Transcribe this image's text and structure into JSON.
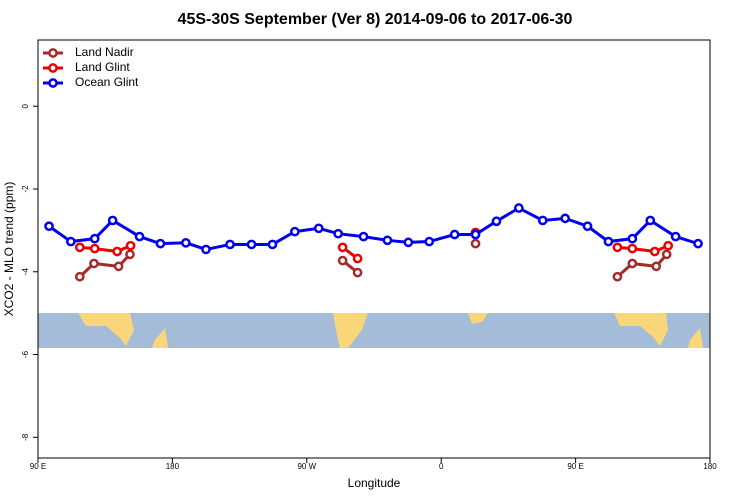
{
  "chart_data": {
    "type": "line",
    "title": "45S-30S September (Ver 8)   2014-09-06 to 2017-06-30",
    "x_label": "Longitude",
    "y_label": "XCO2 - MLO trend (ppm)",
    "xlim": [
      90,
      540
    ],
    "ylim": [
      -8.5,
      1.6
    ],
    "xticks": [
      {
        "value": 90,
        "label": "90 E"
      },
      180,
      {
        "value": 270,
        "label": "90 W"
      },
      {
        "value": 360,
        "label": "0"
      },
      {
        "value": 450,
        "label": "90 E"
      },
      {
        "value": 540,
        "label": "180"
      }
    ],
    "yticks": [
      0,
      -2,
      -4,
      -6,
      -8
    ],
    "legend": "top-left",
    "series": [
      {
        "name": "Land Nadir",
        "color": "#a52a2a",
        "x": [
          118,
          127.5,
          144,
          151.6,
          null,
          294,
          304,
          null,
          383,
          null,
          478,
          488,
          504,
          511
        ],
        "values": [
          -4.12,
          -3.8,
          -3.87,
          -3.58,
          null,
          -3.73,
          -4.02,
          null,
          -3.32,
          null,
          -4.12,
          -3.8,
          -3.87,
          -3.58
        ]
      },
      {
        "name": "Land Glint",
        "color": "#ee0000",
        "x": [
          118,
          128,
          143,
          152,
          null,
          294,
          304,
          null,
          383,
          null,
          478,
          488,
          503,
          512
        ],
        "values": [
          -3.41,
          -3.44,
          -3.51,
          -3.37,
          null,
          -3.41,
          -3.68,
          null,
          -3.05,
          null,
          -3.41,
          -3.44,
          -3.51,
          -3.37
        ]
      },
      {
        "name": "Ocean Glint",
        "color": "#0000ee",
        "x": [
          97.4,
          112,
          128,
          140,
          158,
          172,
          189,
          202.5,
          218.6,
          233,
          247,
          262,
          278,
          291,
          308,
          324,
          338,
          352,
          369,
          383,
          397,
          412,
          428,
          443,
          458,
          472,
          488,
          500,
          517,
          532
        ],
        "values": [
          -2.9,
          -3.27,
          -3.2,
          -2.76,
          -3.15,
          -3.32,
          -3.3,
          -3.46,
          -3.34,
          -3.34,
          -3.34,
          -3.03,
          -2.95,
          -3.08,
          -3.15,
          -3.24,
          -3.29,
          -3.27,
          -3.1,
          -3.1,
          -2.78,
          -2.46,
          -2.76,
          -2.71,
          -2.9,
          -3.27,
          -3.2,
          -2.76,
          -3.15,
          -3.32
        ]
      }
    ]
  }
}
